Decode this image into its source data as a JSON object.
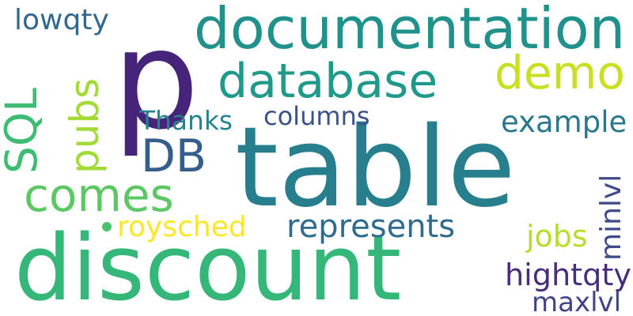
{
  "background": "#ffffff",
  "words": [
    {
      "id": "p",
      "text": "p",
      "color": "#46247a"
    },
    {
      "id": "table",
      "text": "table",
      "color": "#277f8e"
    },
    {
      "id": "discount",
      "text": "discount",
      "color": "#35b779"
    },
    {
      "id": "documentation",
      "text": "documentation",
      "color": "#21918c"
    },
    {
      "id": "database",
      "text": "database",
      "color": "#1f9a8a"
    },
    {
      "id": "demo",
      "text": "demo",
      "color": "#c8e020"
    },
    {
      "id": "pubs",
      "text": "pubs",
      "color": "#a2da37"
    },
    {
      "id": "sql",
      "text": "SQL",
      "color": "#3ebc73"
    },
    {
      "id": "db",
      "text": "DB",
      "color": "#355e8d"
    },
    {
      "id": "comes",
      "text": "comes",
      "color": "#5cc863"
    },
    {
      "id": "lowqty",
      "text": "lowqty",
      "color": "#31688e"
    },
    {
      "id": "thanks",
      "text": "Thanks",
      "color": "#25838e"
    },
    {
      "id": "columns",
      "text": "columns",
      "color": "#3b528b"
    },
    {
      "id": "example",
      "text": "example",
      "color": "#2a788e"
    },
    {
      "id": "roysched",
      "text": "roysched",
      "color": "#fde725"
    },
    {
      "id": "represents",
      "text": "represents",
      "color": "#2f6b8e"
    },
    {
      "id": "minlvl",
      "text": "minlvl",
      "color": "#3e4a89"
    },
    {
      "id": "jobs",
      "text": "jobs",
      "color": "#b5de2b"
    },
    {
      "id": "hightqty",
      "text": "hightqty",
      "color": "#472d7b"
    },
    {
      "id": "maxlvl",
      "text": "maxlvl",
      "color": "#414487"
    }
  ],
  "dot_color": "#4ac16d"
}
